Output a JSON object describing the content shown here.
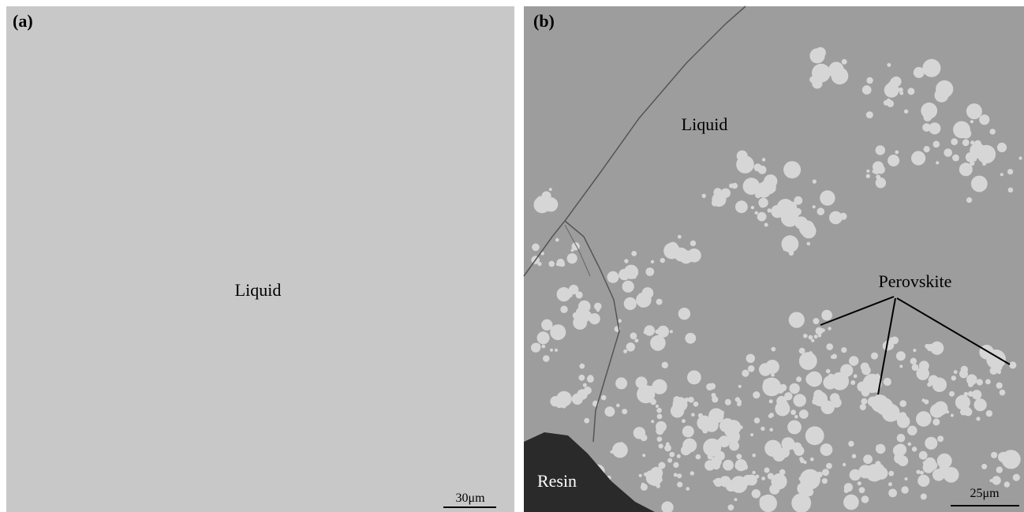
{
  "panels": [
    {
      "label": "(a)",
      "annotations": [
        "Liquid"
      ],
      "scale_bar": "30μm"
    },
    {
      "label": "(b)",
      "annotations": [
        "Liquid",
        "Perovskite",
        "Resin"
      ],
      "scale_bar": "25μm"
    }
  ]
}
